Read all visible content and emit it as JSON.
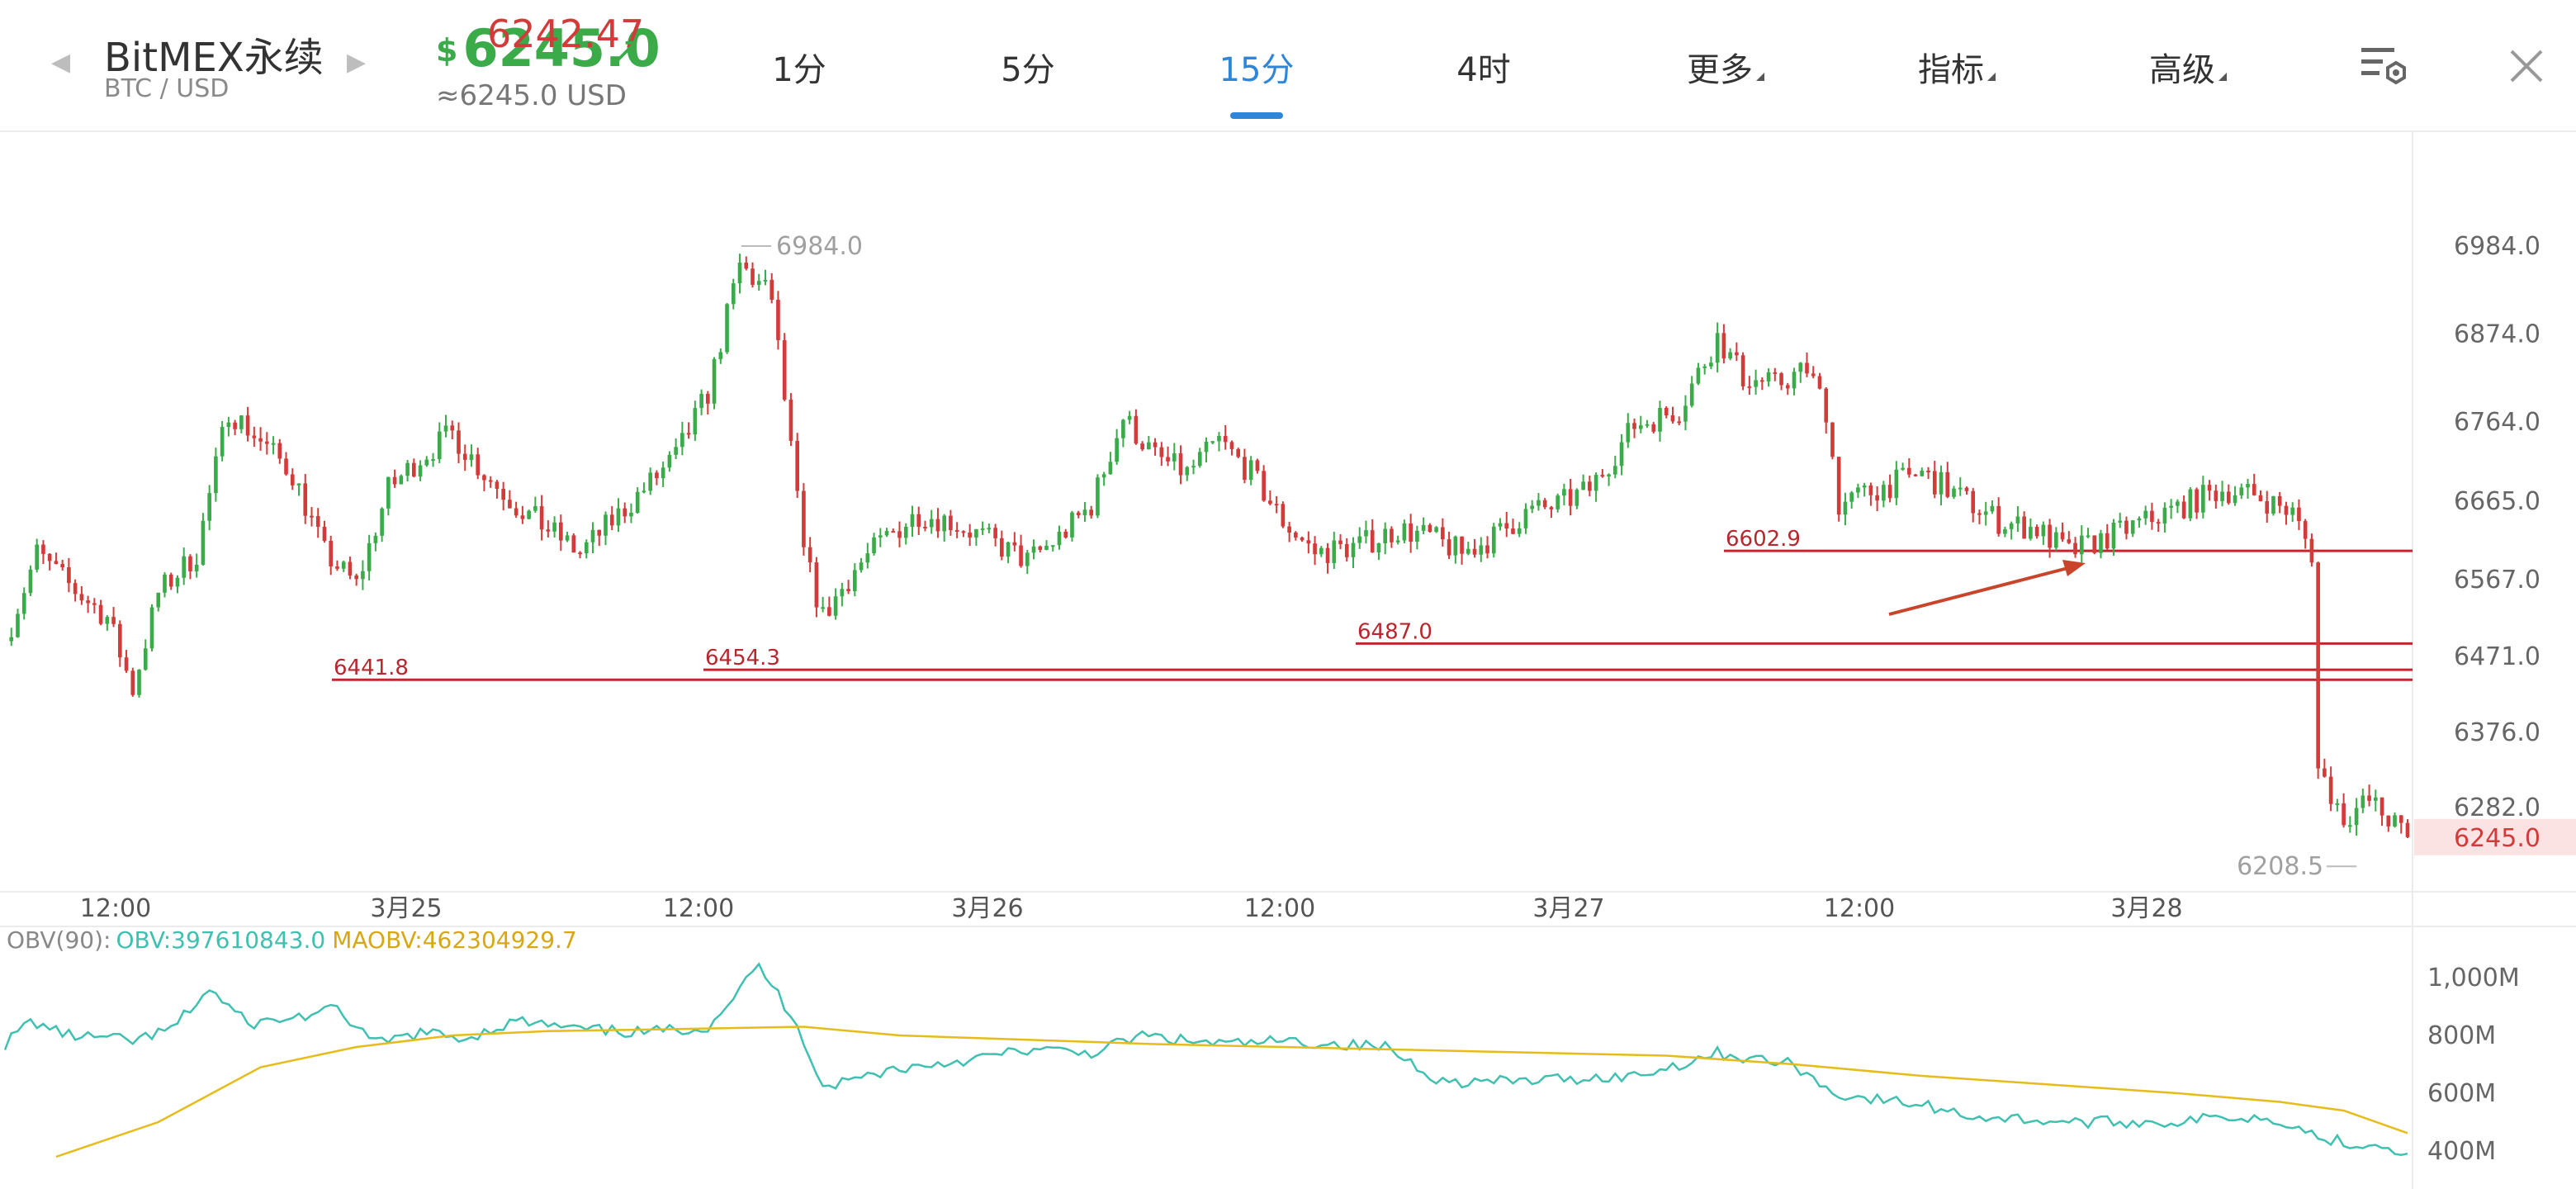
{
  "header": {
    "symbol": "BitMEX永续",
    "pair": "BTC / USD",
    "currency_sign": "$",
    "price": "6245.0",
    "price_ref": "6242.47",
    "price_usd": "≈6245.0 USD",
    "tabs": [
      "1分",
      "5分",
      "15分",
      "4时",
      "更多",
      "指标",
      "高级"
    ],
    "active_tab": "15分",
    "icons": [
      "prev-arrow-icon",
      "next-arrow-icon",
      "trend-up-arrow-icon",
      "chart-settings-icon",
      "close-icon"
    ]
  },
  "colors": {
    "up": "#3bab4a",
    "down": "#d33a3a",
    "active_tab": "#2f86d8",
    "obv": "#40c0b0",
    "maobv": "#e6bc1a",
    "level_line": "#c4262e"
  },
  "chart_data": [
    {
      "type": "candlestick",
      "interval": "15分",
      "x_tick_labels": [
        "12:00",
        "3月25",
        "12:00",
        "3月26",
        "12:00",
        "3月27",
        "12:00",
        "3月28"
      ],
      "y_tick_labels": [
        "6984.0",
        "6874.0",
        "6764.0",
        "6665.0",
        "6567.0",
        "6471.0",
        "6376.0",
        "6282.0"
      ],
      "ylim": [
        6200,
        7080
      ],
      "current_price_label": "6245.0",
      "high_label": "6984.0",
      "low_label": "6208.5",
      "horizontal_levels": [
        6441.8,
        6454.3,
        6487.0,
        6602.9
      ],
      "close_path": [
        [
          0,
          6490
        ],
        [
          5,
          6600
        ],
        [
          10,
          6560
        ],
        [
          16,
          6520
        ],
        [
          20,
          6430
        ],
        [
          24,
          6550
        ],
        [
          30,
          6600
        ],
        [
          35,
          6780
        ],
        [
          40,
          6740
        ],
        [
          45,
          6700
        ],
        [
          50,
          6600
        ],
        [
          55,
          6560
        ],
        [
          60,
          6680
        ],
        [
          65,
          6720
        ],
        [
          70,
          6750
        ],
        [
          75,
          6700
        ],
        [
          80,
          6660
        ],
        [
          85,
          6630
        ],
        [
          90,
          6600
        ],
        [
          95,
          6640
        ],
        [
          100,
          6680
        ],
        [
          105,
          6720
        ],
        [
          110,
          6800
        ],
        [
          115,
          6960
        ],
        [
          120,
          6920
        ],
        [
          125,
          6600
        ],
        [
          128,
          6520
        ],
        [
          133,
          6580
        ],
        [
          138,
          6620
        ],
        [
          143,
          6650
        ],
        [
          148,
          6640
        ],
        [
          153,
          6620
        ],
        [
          160,
          6590
        ],
        [
          165,
          6620
        ],
        [
          170,
          6660
        ],
        [
          175,
          6770
        ],
        [
          180,
          6720
        ],
        [
          185,
          6700
        ],
        [
          190,
          6740
        ],
        [
          195,
          6700
        ],
        [
          200,
          6640
        ],
        [
          205,
          6600
        ],
        [
          212,
          6610
        ],
        [
          218,
          6630
        ],
        [
          223,
          6620
        ],
        [
          228,
          6600
        ],
        [
          233,
          6620
        ],
        [
          238,
          6650
        ],
        [
          243,
          6660
        ],
        [
          248,
          6680
        ],
        [
          255,
          6760
        ],
        [
          262,
          6780
        ],
        [
          268,
          6870
        ],
        [
          272,
          6820
        ],
        [
          277,
          6810
        ],
        [
          282,
          6830
        ],
        [
          285,
          6780
        ],
        [
          287,
          6660
        ],
        [
          293,
          6680
        ],
        [
          300,
          6700
        ],
        [
          306,
          6670
        ],
        [
          312,
          6640
        ],
        [
          318,
          6630
        ],
        [
          323,
          6600
        ],
        [
          329,
          6620
        ],
        [
          335,
          6640
        ],
        [
          341,
          6660
        ],
        [
          347,
          6680
        ],
        [
          353,
          6670
        ],
        [
          358,
          6650
        ],
        [
          361,
          6600
        ],
        [
          362,
          6330
        ],
        [
          366,
          6270
        ],
        [
          370,
          6290
        ],
        [
          374,
          6260
        ],
        [
          376,
          6245.0
        ]
      ]
    },
    {
      "type": "line",
      "indicator": "OBV(90):",
      "series": [
        {
          "name": "OBV",
          "label": "OBV:397610843.0"
        },
        {
          "name": "MAOBV",
          "label": "MAOBV:462304929.7"
        }
      ],
      "y_tick_labels": [
        "1,000M",
        "800M",
        "600M",
        "400M"
      ],
      "ylim": [
        300,
        1100
      ],
      "obv": [
        [
          0,
          770
        ],
        [
          4,
          850
        ],
        [
          10,
          800
        ],
        [
          16,
          790
        ],
        [
          20,
          780
        ],
        [
          26,
          820
        ],
        [
          32,
          960
        ],
        [
          38,
          840
        ],
        [
          45,
          860
        ],
        [
          52,
          890
        ],
        [
          58,
          770
        ],
        [
          65,
          810
        ],
        [
          72,
          790
        ],
        [
          80,
          850
        ],
        [
          90,
          820
        ],
        [
          100,
          810
        ],
        [
          110,
          830
        ],
        [
          118,
          1040
        ],
        [
          124,
          840
        ],
        [
          128,
          620
        ],
        [
          133,
          650
        ],
        [
          138,
          680
        ],
        [
          145,
          700
        ],
        [
          152,
          720
        ],
        [
          160,
          750
        ],
        [
          170,
          740
        ],
        [
          178,
          800
        ],
        [
          185,
          780
        ],
        [
          192,
          770
        ],
        [
          200,
          780
        ],
        [
          208,
          770
        ],
        [
          216,
          760
        ],
        [
          225,
          640
        ],
        [
          235,
          640
        ],
        [
          245,
          650
        ],
        [
          255,
          660
        ],
        [
          262,
          700
        ],
        [
          268,
          740
        ],
        [
          273,
          720
        ],
        [
          280,
          700
        ],
        [
          286,
          600
        ],
        [
          292,
          580
        ],
        [
          300,
          560
        ],
        [
          308,
          520
        ],
        [
          316,
          510
        ],
        [
          324,
          500
        ],
        [
          332,
          500
        ],
        [
          340,
          500
        ],
        [
          348,
          520
        ],
        [
          356,
          510
        ],
        [
          362,
          450
        ],
        [
          366,
          430
        ],
        [
          372,
          420
        ],
        [
          376,
          398
        ]
      ],
      "maobv": [
        [
          8,
          380
        ],
        [
          24,
          500
        ],
        [
          40,
          690
        ],
        [
          55,
          760
        ],
        [
          70,
          800
        ],
        [
          85,
          815
        ],
        [
          100,
          820
        ],
        [
          125,
          830
        ],
        [
          140,
          800
        ],
        [
          160,
          785
        ],
        [
          180,
          770
        ],
        [
          200,
          760
        ],
        [
          220,
          750
        ],
        [
          240,
          740
        ],
        [
          260,
          730
        ],
        [
          280,
          700
        ],
        [
          300,
          660
        ],
        [
          320,
          630
        ],
        [
          340,
          600
        ],
        [
          356,
          570
        ],
        [
          366,
          540
        ],
        [
          376,
          462
        ]
      ]
    }
  ]
}
